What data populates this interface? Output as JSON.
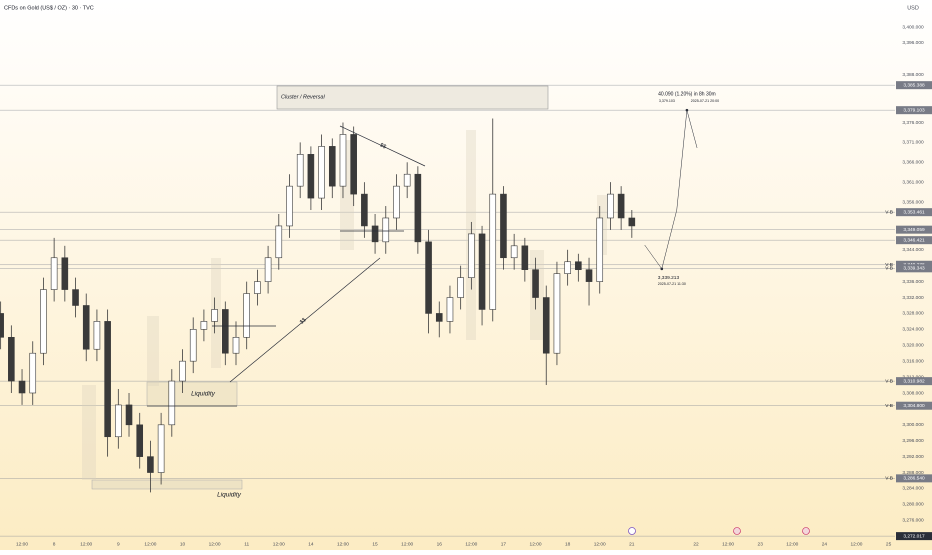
{
  "chart_data": {
    "type": "candlestick",
    "title": "CFDs on Gold (US$ / OZ) · 30 · TVC",
    "currency": "USD",
    "up_color": "#ffffff",
    "down_color": "#3a3a3a",
    "line_color": "#2a2e39",
    "grid": false,
    "candles": {
      "x": [
        0,
        1,
        2,
        3,
        4,
        5,
        6,
        7,
        8,
        9,
        10,
        11,
        12,
        13,
        14,
        15,
        16,
        17,
        18,
        19,
        20,
        21,
        22,
        23,
        24,
        25,
        26,
        27,
        28,
        29,
        30,
        31,
        32,
        33,
        34,
        35,
        36,
        37,
        38,
        39,
        40,
        41,
        42,
        43,
        44,
        45,
        46,
        47,
        48,
        49,
        50,
        51,
        52,
        53,
        54,
        55,
        56,
        57,
        58,
        59
      ],
      "open": [
        3328,
        3322,
        3311,
        3308,
        3318,
        3334,
        3342,
        3334,
        3330,
        3319,
        3326,
        3297,
        3305,
        3300,
        3292,
        3288,
        3300,
        3311,
        3316,
        3324,
        3326,
        3329,
        3318,
        3322,
        3333,
        3336,
        3342,
        3350,
        3360,
        3368,
        3357,
        3370,
        3360,
        3373,
        3358,
        3350,
        3346,
        3352,
        3360,
        3363,
        3346,
        3328,
        3326,
        3332,
        3337,
        3348,
        3329,
        3358,
        3342,
        3345,
        3339,
        3332,
        3318,
        3338,
        3341,
        3339,
        3336,
        3352,
        3358,
        3352
      ],
      "high": [
        3331,
        3325,
        3314,
        3321,
        3337,
        3347,
        3345,
        3337,
        3333,
        3329,
        3329,
        3309,
        3308,
        3303,
        3296,
        3303,
        3314,
        3319,
        3327,
        3329,
        3332,
        3331,
        3326,
        3336,
        3339,
        3345,
        3353,
        3363,
        3371,
        3370,
        3373,
        3372,
        3376,
        3375,
        3361,
        3353,
        3355,
        3363,
        3366,
        3365,
        3349,
        3331,
        3335,
        3340,
        3351,
        3350,
        3377,
        3360,
        3348,
        3347,
        3342,
        3335,
        3341,
        3344,
        3343,
        3342,
        3355,
        3361,
        3360,
        3354
      ],
      "low": [
        3319,
        3308,
        3305,
        3305,
        3315,
        3331,
        3331,
        3327,
        3316,
        3316,
        3292,
        3294,
        3297,
        3289,
        3283,
        3285,
        3297,
        3308,
        3313,
        3321,
        3323,
        3315,
        3315,
        3319,
        3330,
        3333,
        3339,
        3347,
        3357,
        3354,
        3354,
        3357,
        3357,
        3355,
        3347,
        3343,
        3343,
        3349,
        3357,
        3343,
        3323,
        3322,
        3323,
        3329,
        3334,
        3325,
        3326,
        3339,
        3339,
        3336,
        3329,
        3310,
        3315,
        3335,
        3336,
        3330,
        3333,
        3349,
        3349,
        3347
      ],
      "close": [
        3322,
        3311,
        3308,
        3318,
        3334,
        3342,
        3334,
        3330,
        3319,
        3326,
        3297,
        3305,
        3300,
        3292,
        3288,
        3300,
        3311,
        3316,
        3324,
        3326,
        3329,
        3318,
        3322,
        3333,
        3336,
        3342,
        3350,
        3360,
        3368,
        3357,
        3370,
        3360,
        3373,
        3358,
        3350,
        3346,
        3352,
        3360,
        3363,
        3346,
        3328,
        3326,
        3332,
        3337,
        3348,
        3329,
        3358,
        3342,
        3345,
        3339,
        3332,
        3318,
        3338,
        3341,
        3339,
        3336,
        3352,
        3358,
        3352,
        3350
      ]
    },
    "xlim": [
      -0.06,
      83.6
    ],
    "xticks": [
      {
        "value": 2,
        "label": "12:00"
      },
      {
        "value": 5,
        "label": "8"
      },
      {
        "value": 8,
        "label": "12:00"
      },
      {
        "value": 11,
        "label": "9"
      },
      {
        "value": 14,
        "label": "12:00"
      },
      {
        "value": 17,
        "label": "10"
      },
      {
        "value": 20,
        "label": "12:00"
      },
      {
        "value": 23,
        "label": "11"
      },
      {
        "value": 26,
        "label": "12:00"
      },
      {
        "value": 29,
        "label": "14"
      },
      {
        "value": 32,
        "label": "12:00"
      },
      {
        "value": 35,
        "label": "15"
      },
      {
        "value": 38,
        "label": "12:00"
      },
      {
        "value": 41,
        "label": "16"
      },
      {
        "value": 44,
        "label": "12:00"
      },
      {
        "value": 47,
        "label": "17"
      },
      {
        "value": 50,
        "label": "12:00"
      },
      {
        "value": 53,
        "label": "18"
      },
      {
        "value": 56,
        "label": "12:00"
      },
      {
        "value": 59,
        "label": "21"
      },
      {
        "value": 65,
        "label": "22"
      },
      {
        "value": 68,
        "label": "12:00"
      },
      {
        "value": 71,
        "label": "23"
      },
      {
        "value": 74,
        "label": "12:00"
      },
      {
        "value": 77,
        "label": "24"
      },
      {
        "value": 80,
        "label": "12:00"
      },
      {
        "value": 83,
        "label": "25"
      }
    ],
    "ylim": [
      3272.55,
      3406.8
    ],
    "yticks": [
      {
        "value": 3276,
        "label": "3,276.000"
      },
      {
        "value": 3280,
        "label": "3,280.000"
      },
      {
        "value": 3284,
        "label": "3,284.000"
      },
      {
        "value": 3288,
        "label": "3,288.000"
      },
      {
        "value": 3292,
        "label": "3,292.000"
      },
      {
        "value": 3296,
        "label": "3,296.000"
      },
      {
        "value": 3300,
        "label": "3,300.000"
      },
      {
        "value": 3308,
        "label": "3,308.000"
      },
      {
        "value": 3312,
        "label": "3,312.000"
      },
      {
        "value": 3316,
        "label": "3,316.000"
      },
      {
        "value": 3320,
        "label": "3,320.000"
      },
      {
        "value": 3324,
        "label": "3,324.000"
      },
      {
        "value": 3328,
        "label": "3,328.000"
      },
      {
        "value": 3332,
        "label": "3,332.000"
      },
      {
        "value": 3336,
        "label": "3,336.000"
      },
      {
        "value": 3344,
        "label": "3,344.000"
      },
      {
        "value": 3356,
        "label": "3,356.000"
      },
      {
        "value": 3361,
        "label": "3,361.000"
      },
      {
        "value": 3366,
        "label": "3,366.000"
      },
      {
        "value": 3371,
        "label": "3,371.000"
      },
      {
        "value": 3376,
        "label": "3,376.000"
      },
      {
        "value": 3388,
        "label": "3,388.000"
      },
      {
        "value": 3396,
        "label": "3,396.000"
      },
      {
        "value": 3400,
        "label": "3,400.000"
      }
    ],
    "price_labels": [
      {
        "value": 3385.388,
        "label": "3,385.388"
      },
      {
        "value": 3379.103,
        "label": "3,379.103"
      },
      {
        "value": 3353.461,
        "label": "3,353.461",
        "tag": "V-B"
      },
      {
        "value": 3349.059,
        "label": "3,349.059"
      },
      {
        "value": 3346.421,
        "label": "3,346.421"
      },
      {
        "value": 3340.236,
        "label": "3,340.236",
        "tag": "V-B"
      },
      {
        "value": 3339.343,
        "label": "3,339.343",
        "tag": "V-B"
      },
      {
        "value": 3310.982,
        "label": "3,310.982",
        "tag": "V-B"
      },
      {
        "value": 3304.8,
        "label": "3,304.800",
        "tag": "V-B"
      },
      {
        "value": 3286.54,
        "label": "3,286.540",
        "tag": "V-B"
      },
      {
        "value": 3272.017,
        "label": "3,272.017"
      }
    ],
    "projection": {
      "x": [
        60.2,
        61.8,
        63.2,
        64.15,
        65.1
      ],
      "values": [
        3345.2,
        3339.213,
        3354,
        3379.103,
        3369.6
      ],
      "low_label": {
        "price": "3,339.213",
        "time": "2025-07-21 11:30"
      },
      "target_label": {
        "change": "40.090 (1.20%) in 8h 30m",
        "price": "3,379.103",
        "time": "2025-07-21 20:00"
      }
    },
    "annotations": {
      "cluster": "Cluster / Reversal",
      "liquidity_upper": "Liquidity",
      "liquidity_lower": "Liquidity",
      "dollars_rising": "$$",
      "dollars_falling": "$$"
    }
  }
}
